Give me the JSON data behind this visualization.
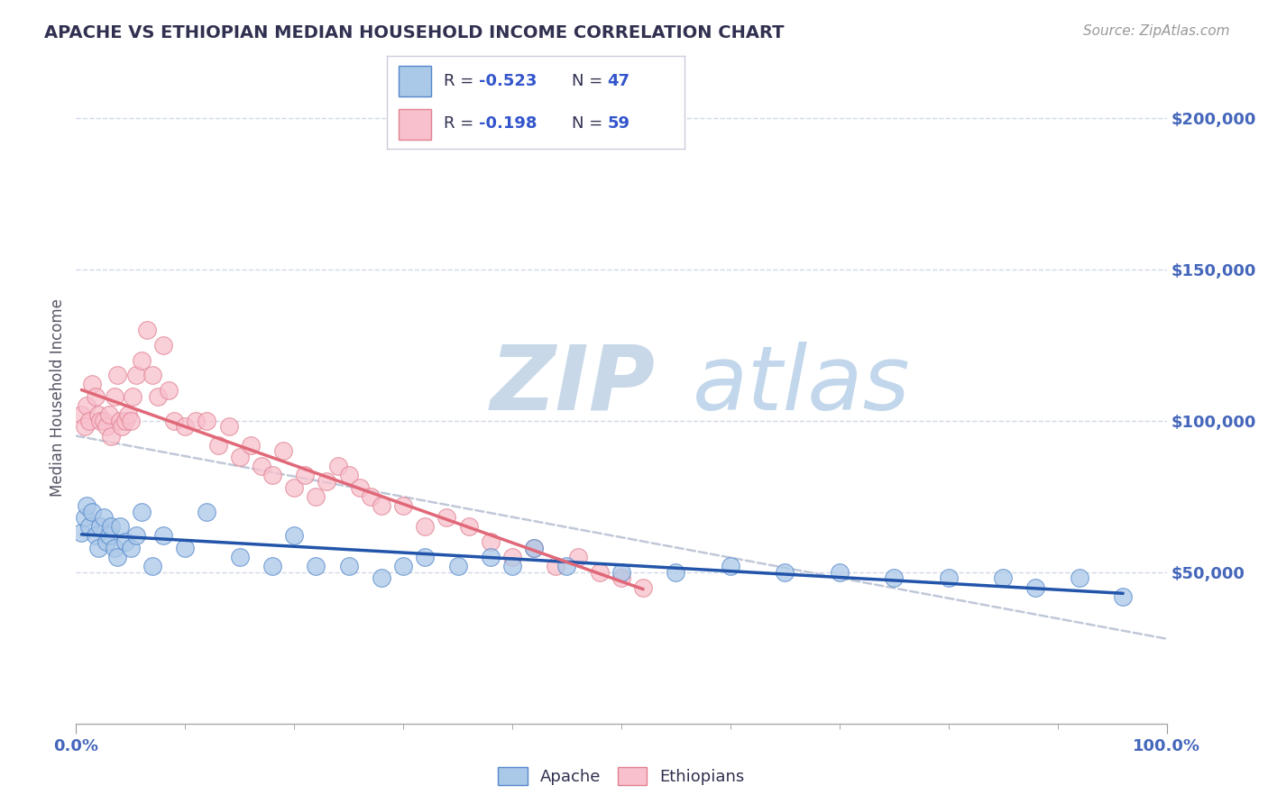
{
  "title": "APACHE VS ETHIOPIAN MEDIAN HOUSEHOLD INCOME CORRELATION CHART",
  "source": "Source: ZipAtlas.com",
  "ylabel": "Median Household Income",
  "apache_R": -0.523,
  "apache_N": 47,
  "ethiopian_R": -0.198,
  "ethiopian_N": 59,
  "apache_color": "#aac8e8",
  "apache_edge_color": "#5588cc",
  "apache_line_color": "#2255aa",
  "ethiopian_color": "#f8c0cc",
  "ethiopian_edge_color": "#e08090",
  "ethiopian_line_color": "#e06878",
  "dashed_line_color": "#c0c8d8",
  "title_color": "#303050",
  "axis_color": "#4466bb",
  "bg_color": "#ffffff",
  "grid_color": "#d0d8e8",
  "legend_text_color": "#303050",
  "legend_value_color": "#3355cc",
  "ytick_labels": [
    "$50,000",
    "$100,000",
    "$150,000",
    "$200,000"
  ],
  "ytick_values": [
    50000,
    100000,
    150000,
    200000
  ],
  "xlim": [
    0,
    100
  ],
  "ylim": [
    0,
    215000
  ],
  "apache_x": [
    0.5,
    0.8,
    1.0,
    1.2,
    1.5,
    1.8,
    2.0,
    2.2,
    2.5,
    2.8,
    3.0,
    3.2,
    3.5,
    3.8,
    4.0,
    4.5,
    5.0,
    5.5,
    6.0,
    7.0,
    8.0,
    10.0,
    12.0,
    15.0,
    18.0,
    20.0,
    22.0,
    25.0,
    28.0,
    30.0,
    32.0,
    35.0,
    38.0,
    40.0,
    42.0,
    45.0,
    50.0,
    55.0,
    60.0,
    65.0,
    70.0,
    75.0,
    80.0,
    85.0,
    88.0,
    92.0,
    96.0
  ],
  "apache_y": [
    63000,
    68000,
    72000,
    65000,
    70000,
    62000,
    58000,
    65000,
    68000,
    60000,
    62000,
    65000,
    58000,
    55000,
    65000,
    60000,
    58000,
    62000,
    70000,
    52000,
    62000,
    58000,
    70000,
    55000,
    52000,
    62000,
    52000,
    52000,
    48000,
    52000,
    55000,
    52000,
    55000,
    52000,
    58000,
    52000,
    50000,
    50000,
    52000,
    50000,
    50000,
    48000,
    48000,
    48000,
    45000,
    48000,
    42000
  ],
  "ethiopian_x": [
    0.5,
    0.8,
    1.0,
    1.2,
    1.5,
    1.8,
    2.0,
    2.2,
    2.5,
    2.8,
    3.0,
    3.2,
    3.5,
    3.8,
    4.0,
    4.2,
    4.5,
    4.8,
    5.0,
    5.2,
    5.5,
    6.0,
    6.5,
    7.0,
    7.5,
    8.0,
    8.5,
    9.0,
    10.0,
    11.0,
    12.0,
    13.0,
    14.0,
    15.0,
    16.0,
    17.0,
    18.0,
    19.0,
    20.0,
    21.0,
    22.0,
    23.0,
    24.0,
    25.0,
    26.0,
    27.0,
    28.0,
    30.0,
    32.0,
    34.0,
    36.0,
    38.0,
    40.0,
    42.0,
    44.0,
    46.0,
    48.0,
    50.0,
    52.0
  ],
  "ethiopian_y": [
    102000,
    98000,
    105000,
    100000,
    112000,
    108000,
    102000,
    100000,
    100000,
    98000,
    102000,
    95000,
    108000,
    115000,
    100000,
    98000,
    100000,
    102000,
    100000,
    108000,
    115000,
    120000,
    130000,
    115000,
    108000,
    125000,
    110000,
    100000,
    98000,
    100000,
    100000,
    92000,
    98000,
    88000,
    92000,
    85000,
    82000,
    90000,
    78000,
    82000,
    75000,
    80000,
    85000,
    82000,
    78000,
    75000,
    72000,
    72000,
    65000,
    68000,
    65000,
    60000,
    55000,
    58000,
    52000,
    55000,
    50000,
    48000,
    45000
  ],
  "watermark_zip": "ZIP",
  "watermark_atlas": "atlas",
  "bottom_legend": [
    "Apache",
    "Ethiopians"
  ]
}
